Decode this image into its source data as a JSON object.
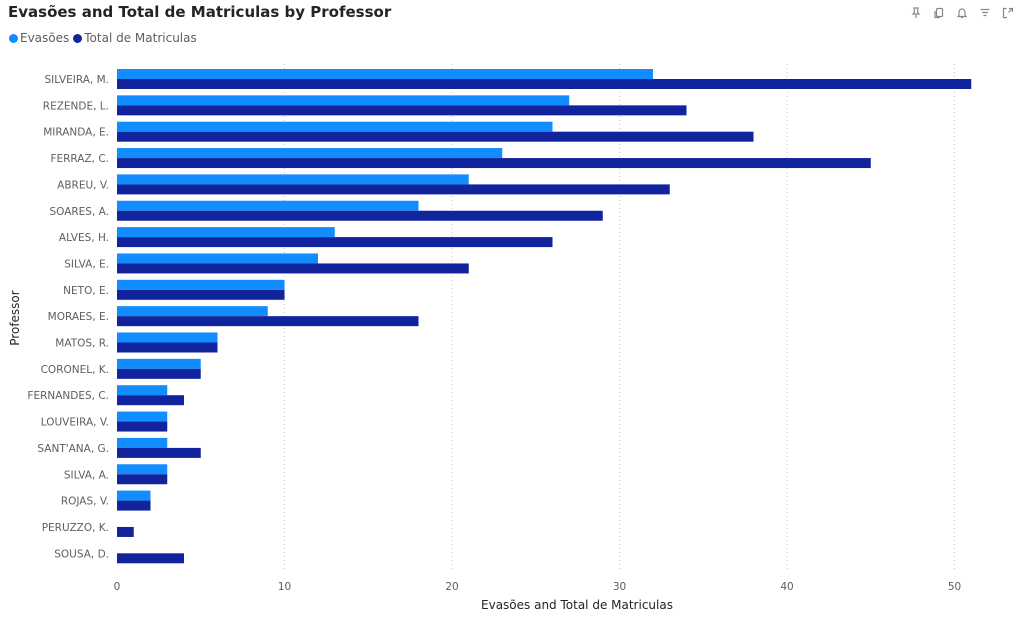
{
  "header": {
    "title": "Evasões and Total de Matriculas by Professor"
  },
  "toolbar": {
    "icons": [
      "pin-icon",
      "copy-icon",
      "bell-icon",
      "filter-icon",
      "focus-mode-icon"
    ]
  },
  "colors": {
    "evasoes": "#118DFF",
    "total": "#12239E"
  },
  "chart_data": {
    "type": "bar",
    "orientation": "horizontal",
    "title": "Evasões and Total de Matriculas by Professor",
    "xlabel": "Evasões and Total de Matriculas",
    "ylabel": "Professor",
    "categories": [
      "SILVEIRA, M.",
      "REZENDE, L.",
      "MIRANDA, E.",
      "FERRAZ, C.",
      "ABREU, V.",
      "SOARES, A.",
      "ALVES, H.",
      "SILVA, E.",
      "NETO, E.",
      "MORAES, E.",
      "MATOS, R.",
      "CORONEL, K.",
      "FERNANDES, C.",
      "LOUVEIRA, V.",
      "SANT'ANA, G.",
      "SILVA, A.",
      "ROJAS, V.",
      "PERUZZO, K.",
      "SOUSA, D."
    ],
    "series": [
      {
        "name": "Evasões",
        "values": [
          32,
          27,
          26,
          23,
          21,
          18,
          13,
          12,
          10,
          9,
          6,
          5,
          3,
          3,
          3,
          3,
          2,
          0,
          0
        ]
      },
      {
        "name": "Total de Matriculas",
        "values": [
          51,
          34,
          38,
          45,
          33,
          29,
          26,
          21,
          10,
          18,
          6,
          5,
          4,
          3,
          5,
          3,
          2,
          1,
          4
        ]
      }
    ],
    "xlim": [
      0,
      52
    ],
    "xticks": [
      0,
      10,
      20,
      30,
      40,
      50
    ],
    "grid": true,
    "legend": "top-left"
  }
}
